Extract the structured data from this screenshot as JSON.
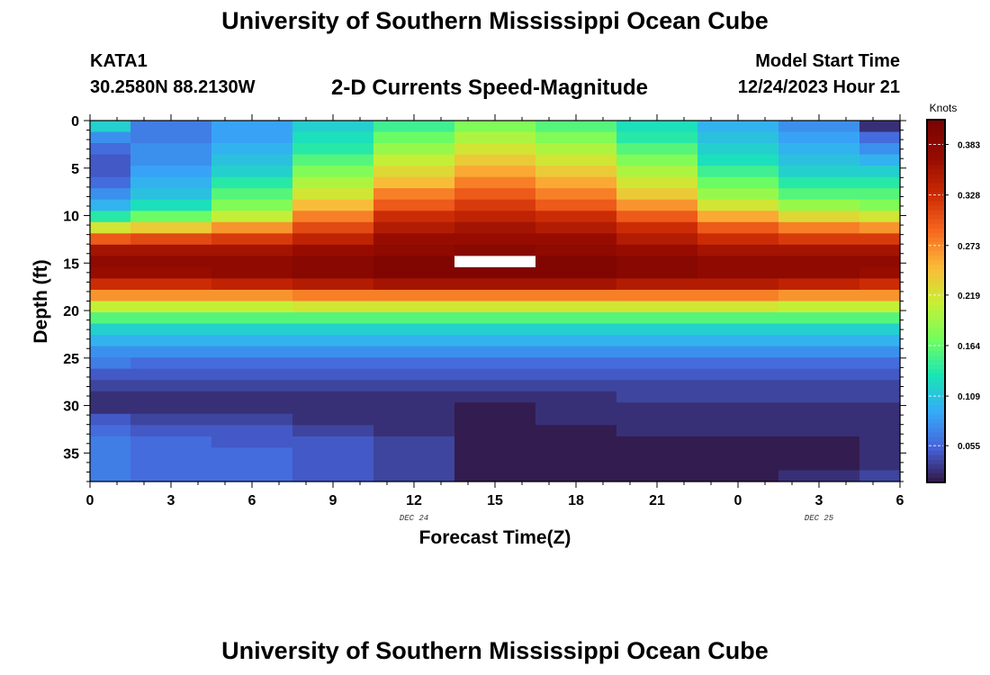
{
  "header": {
    "title": "University of Southern Mississippi Ocean Cube",
    "station": "KATA1",
    "coords": "30.2580N  88.2130W",
    "subtitle": "2-D Currents Speed-Magnitude",
    "model_start_label": "Model Start Time",
    "model_start_value": "12/24/2023 Hour 21"
  },
  "footer": {
    "title": "University of Southern Mississippi Ocean Cube"
  },
  "chart_data": {
    "type": "heatmap",
    "xlabel": "Forecast Time(Z)",
    "ylabel": "Depth (ft)",
    "x_tick_labels": [
      "0",
      "3",
      "6",
      "9",
      "12",
      "15",
      "18",
      "21",
      "0",
      "3",
      "6"
    ],
    "date_labels": [
      "DEC 24",
      "DEC 25"
    ],
    "y_ticks": [
      0,
      5,
      10,
      15,
      20,
      25,
      30,
      35
    ],
    "ylim": [
      0,
      38
    ],
    "colorbar": {
      "label": "Knots",
      "ticks": [
        "0.383",
        "0.328",
        "0.273",
        "0.219",
        "0.164",
        "0.109",
        "0.055"
      ],
      "range": [
        0.015,
        0.41
      ]
    },
    "columns": [
      {
        "x": 0,
        "v": [
          0.12,
          0.08,
          0.06,
          0.05,
          0.05,
          0.06,
          0.08,
          0.1,
          0.14,
          0.22,
          0.3,
          0.36,
          0.38,
          0.37,
          0.33,
          0.27,
          0.21,
          0.16,
          0.12,
          0.1,
          0.08,
          0.07,
          0.05,
          0.04,
          0.03,
          0.03,
          0.05,
          0.06,
          0.07,
          0.07,
          0.07,
          0.07
        ]
      },
      {
        "x": 3,
        "v": [
          0.07,
          0.07,
          0.08,
          0.08,
          0.09,
          0.1,
          0.11,
          0.13,
          0.17,
          0.24,
          0.31,
          0.36,
          0.38,
          0.37,
          0.33,
          0.27,
          0.21,
          0.16,
          0.12,
          0.1,
          0.08,
          0.06,
          0.05,
          0.04,
          0.03,
          0.03,
          0.04,
          0.05,
          0.06,
          0.06,
          0.06,
          0.06
        ]
      },
      {
        "x": 6,
        "v": [
          0.09,
          0.09,
          0.1,
          0.11,
          0.12,
          0.14,
          0.16,
          0.18,
          0.21,
          0.27,
          0.32,
          0.36,
          0.38,
          0.38,
          0.34,
          0.27,
          0.21,
          0.16,
          0.12,
          0.1,
          0.08,
          0.06,
          0.05,
          0.04,
          0.03,
          0.03,
          0.04,
          0.05,
          0.05,
          0.06,
          0.06,
          0.06
        ]
      },
      {
        "x": 9,
        "v": [
          0.12,
          0.13,
          0.14,
          0.16,
          0.18,
          0.2,
          0.22,
          0.25,
          0.28,
          0.31,
          0.34,
          0.37,
          0.39,
          0.39,
          0.35,
          0.28,
          0.22,
          0.16,
          0.12,
          0.1,
          0.08,
          0.06,
          0.05,
          0.04,
          0.03,
          0.03,
          0.03,
          0.04,
          0.05,
          0.05,
          0.05,
          0.05
        ]
      },
      {
        "x": 12,
        "v": [
          0.15,
          0.17,
          0.19,
          0.21,
          0.23,
          0.25,
          0.28,
          0.3,
          0.33,
          0.35,
          0.37,
          0.38,
          0.4,
          0.4,
          0.36,
          0.28,
          0.22,
          0.16,
          0.12,
          0.1,
          0.08,
          0.06,
          0.05,
          0.04,
          0.03,
          0.03,
          0.03,
          0.03,
          0.04,
          0.04,
          0.04,
          0.04
        ]
      },
      {
        "x": 15,
        "v": [
          0.18,
          0.2,
          0.22,
          0.24,
          0.26,
          0.28,
          0.3,
          0.32,
          0.34,
          0.36,
          0.37,
          0.39,
          null,
          0.4,
          0.36,
          0.28,
          0.22,
          0.16,
          0.12,
          0.1,
          0.08,
          0.06,
          0.05,
          0.04,
          0.03,
          0.02,
          0.02,
          0.02,
          0.02,
          0.02,
          0.02,
          0.02
        ]
      },
      {
        "x": 18,
        "v": [
          0.16,
          0.18,
          0.2,
          0.22,
          0.24,
          0.26,
          0.28,
          0.3,
          0.33,
          0.35,
          0.37,
          0.38,
          0.4,
          0.4,
          0.36,
          0.28,
          0.22,
          0.16,
          0.12,
          0.1,
          0.08,
          0.06,
          0.05,
          0.04,
          0.03,
          0.03,
          0.03,
          0.02,
          0.02,
          0.02,
          0.02,
          0.02
        ]
      },
      {
        "x": 21,
        "v": [
          0.13,
          0.14,
          0.16,
          0.18,
          0.2,
          0.22,
          0.24,
          0.27,
          0.3,
          0.33,
          0.35,
          0.37,
          0.39,
          0.39,
          0.35,
          0.28,
          0.22,
          0.16,
          0.12,
          0.1,
          0.08,
          0.06,
          0.05,
          0.04,
          0.04,
          0.03,
          0.03,
          0.03,
          0.02,
          0.02,
          0.02,
          0.02
        ]
      },
      {
        "x": 0,
        "v": [
          0.1,
          0.11,
          0.12,
          0.13,
          0.15,
          0.17,
          0.19,
          0.22,
          0.26,
          0.3,
          0.33,
          0.36,
          0.38,
          0.38,
          0.35,
          0.28,
          0.22,
          0.16,
          0.12,
          0.1,
          0.08,
          0.06,
          0.05,
          0.04,
          0.04,
          0.03,
          0.03,
          0.03,
          0.02,
          0.02,
          0.02,
          0.02
        ]
      },
      {
        "x": 3,
        "v": [
          0.08,
          0.09,
          0.1,
          0.11,
          0.12,
          0.14,
          0.16,
          0.19,
          0.23,
          0.28,
          0.32,
          0.36,
          0.38,
          0.38,
          0.34,
          0.27,
          0.21,
          0.16,
          0.12,
          0.1,
          0.08,
          0.06,
          0.05,
          0.04,
          0.04,
          0.03,
          0.03,
          0.03,
          0.02,
          0.02,
          0.02,
          0.03
        ]
      },
      {
        "x": 6,
        "v": [
          0.03,
          0.06,
          0.08,
          0.1,
          0.12,
          0.14,
          0.16,
          0.18,
          0.22,
          0.27,
          0.32,
          0.36,
          0.38,
          0.37,
          0.33,
          0.27,
          0.21,
          0.16,
          0.12,
          0.1,
          0.08,
          0.06,
          0.05,
          0.04,
          0.04,
          0.03,
          0.03,
          0.03,
          0.03,
          0.03,
          0.03,
          0.04
        ]
      }
    ]
  }
}
